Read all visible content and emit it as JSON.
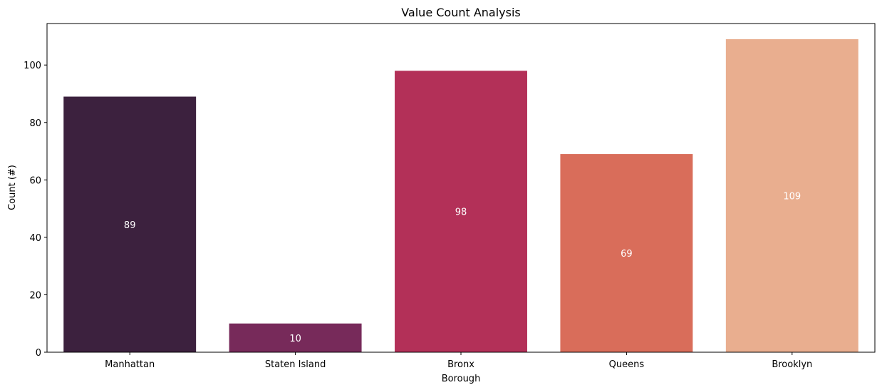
{
  "chart_data": {
    "type": "bar",
    "title": "Value Count Analysis",
    "xlabel": "Borough",
    "ylabel": "Count (#)",
    "categories": [
      "Manhattan",
      "Staten Island",
      "Bronx",
      "Queens",
      "Brooklyn"
    ],
    "values": [
      89,
      10,
      98,
      69,
      109
    ],
    "data_labels": [
      "89",
      "10",
      "98",
      "69",
      "109"
    ],
    "colors": [
      "#3c213e",
      "#772a5a",
      "#b33058",
      "#d96d5a",
      "#e9ae8f"
    ],
    "ylim": [
      0,
      114.45
    ],
    "yticks": [
      0,
      20,
      40,
      60,
      80,
      100
    ],
    "ytick_labels": [
      "0",
      "20",
      "40",
      "60",
      "80",
      "100"
    ],
    "grid": false,
    "legend": "none"
  }
}
